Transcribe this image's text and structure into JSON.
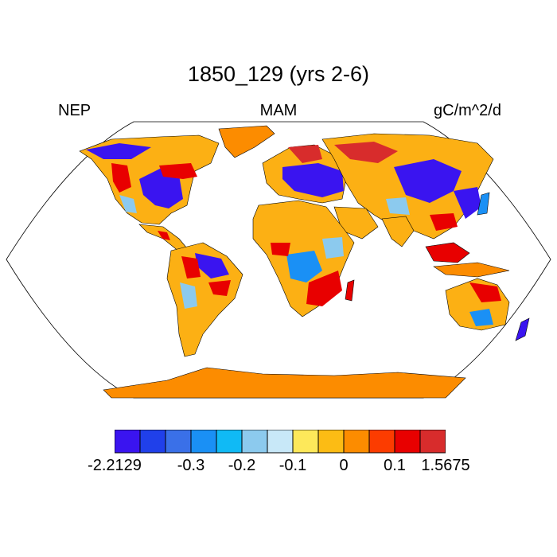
{
  "title": "1850_129 (yrs 2-6)",
  "left_label": "NEP",
  "center_label": "MAM",
  "right_label": "gC/m^2/d",
  "colorbar": {
    "colors": [
      "#3a14f0",
      "#2040ea",
      "#3a70e8",
      "#1a90f5",
      "#10baf5",
      "#8ccaee",
      "#c8e8f8",
      "#fde85a",
      "#fcbc14",
      "#fc8c00",
      "#fc3c00",
      "#e80000",
      "#d82c2c"
    ],
    "labels": [
      "-2.2129",
      "-0.3",
      "-0.2",
      "-0.1",
      "0",
      "0.1",
      "1.5675"
    ]
  },
  "map": {
    "projection": "Robinson",
    "field_colors": {
      "ocean": "#ffffff",
      "land_default": "#fcb014",
      "ice": "#fc8c00",
      "deep_blue": "#3a14f0",
      "blue": "#1a90f5",
      "light_blue": "#8ccaee",
      "red": "#e80000",
      "dark_red": "#d82c2c",
      "orange": "#fc8c00",
      "yellow": "#fde85a"
    }
  }
}
